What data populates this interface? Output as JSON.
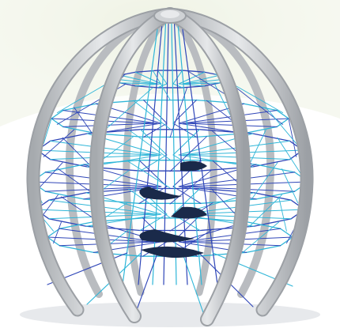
{
  "scene": {
    "subject": "spherical-rope-climbing-frame",
    "colors": {
      "background": "#ffffff",
      "backdrop_tint": "#eef3e4",
      "steel_arch": "#d3d5d8",
      "steel_shadow": "#9fa3a8",
      "rope_dark": "#2f46b8",
      "rope_light": "#2fb6d8",
      "platform": "#1a2a4a"
    }
  }
}
